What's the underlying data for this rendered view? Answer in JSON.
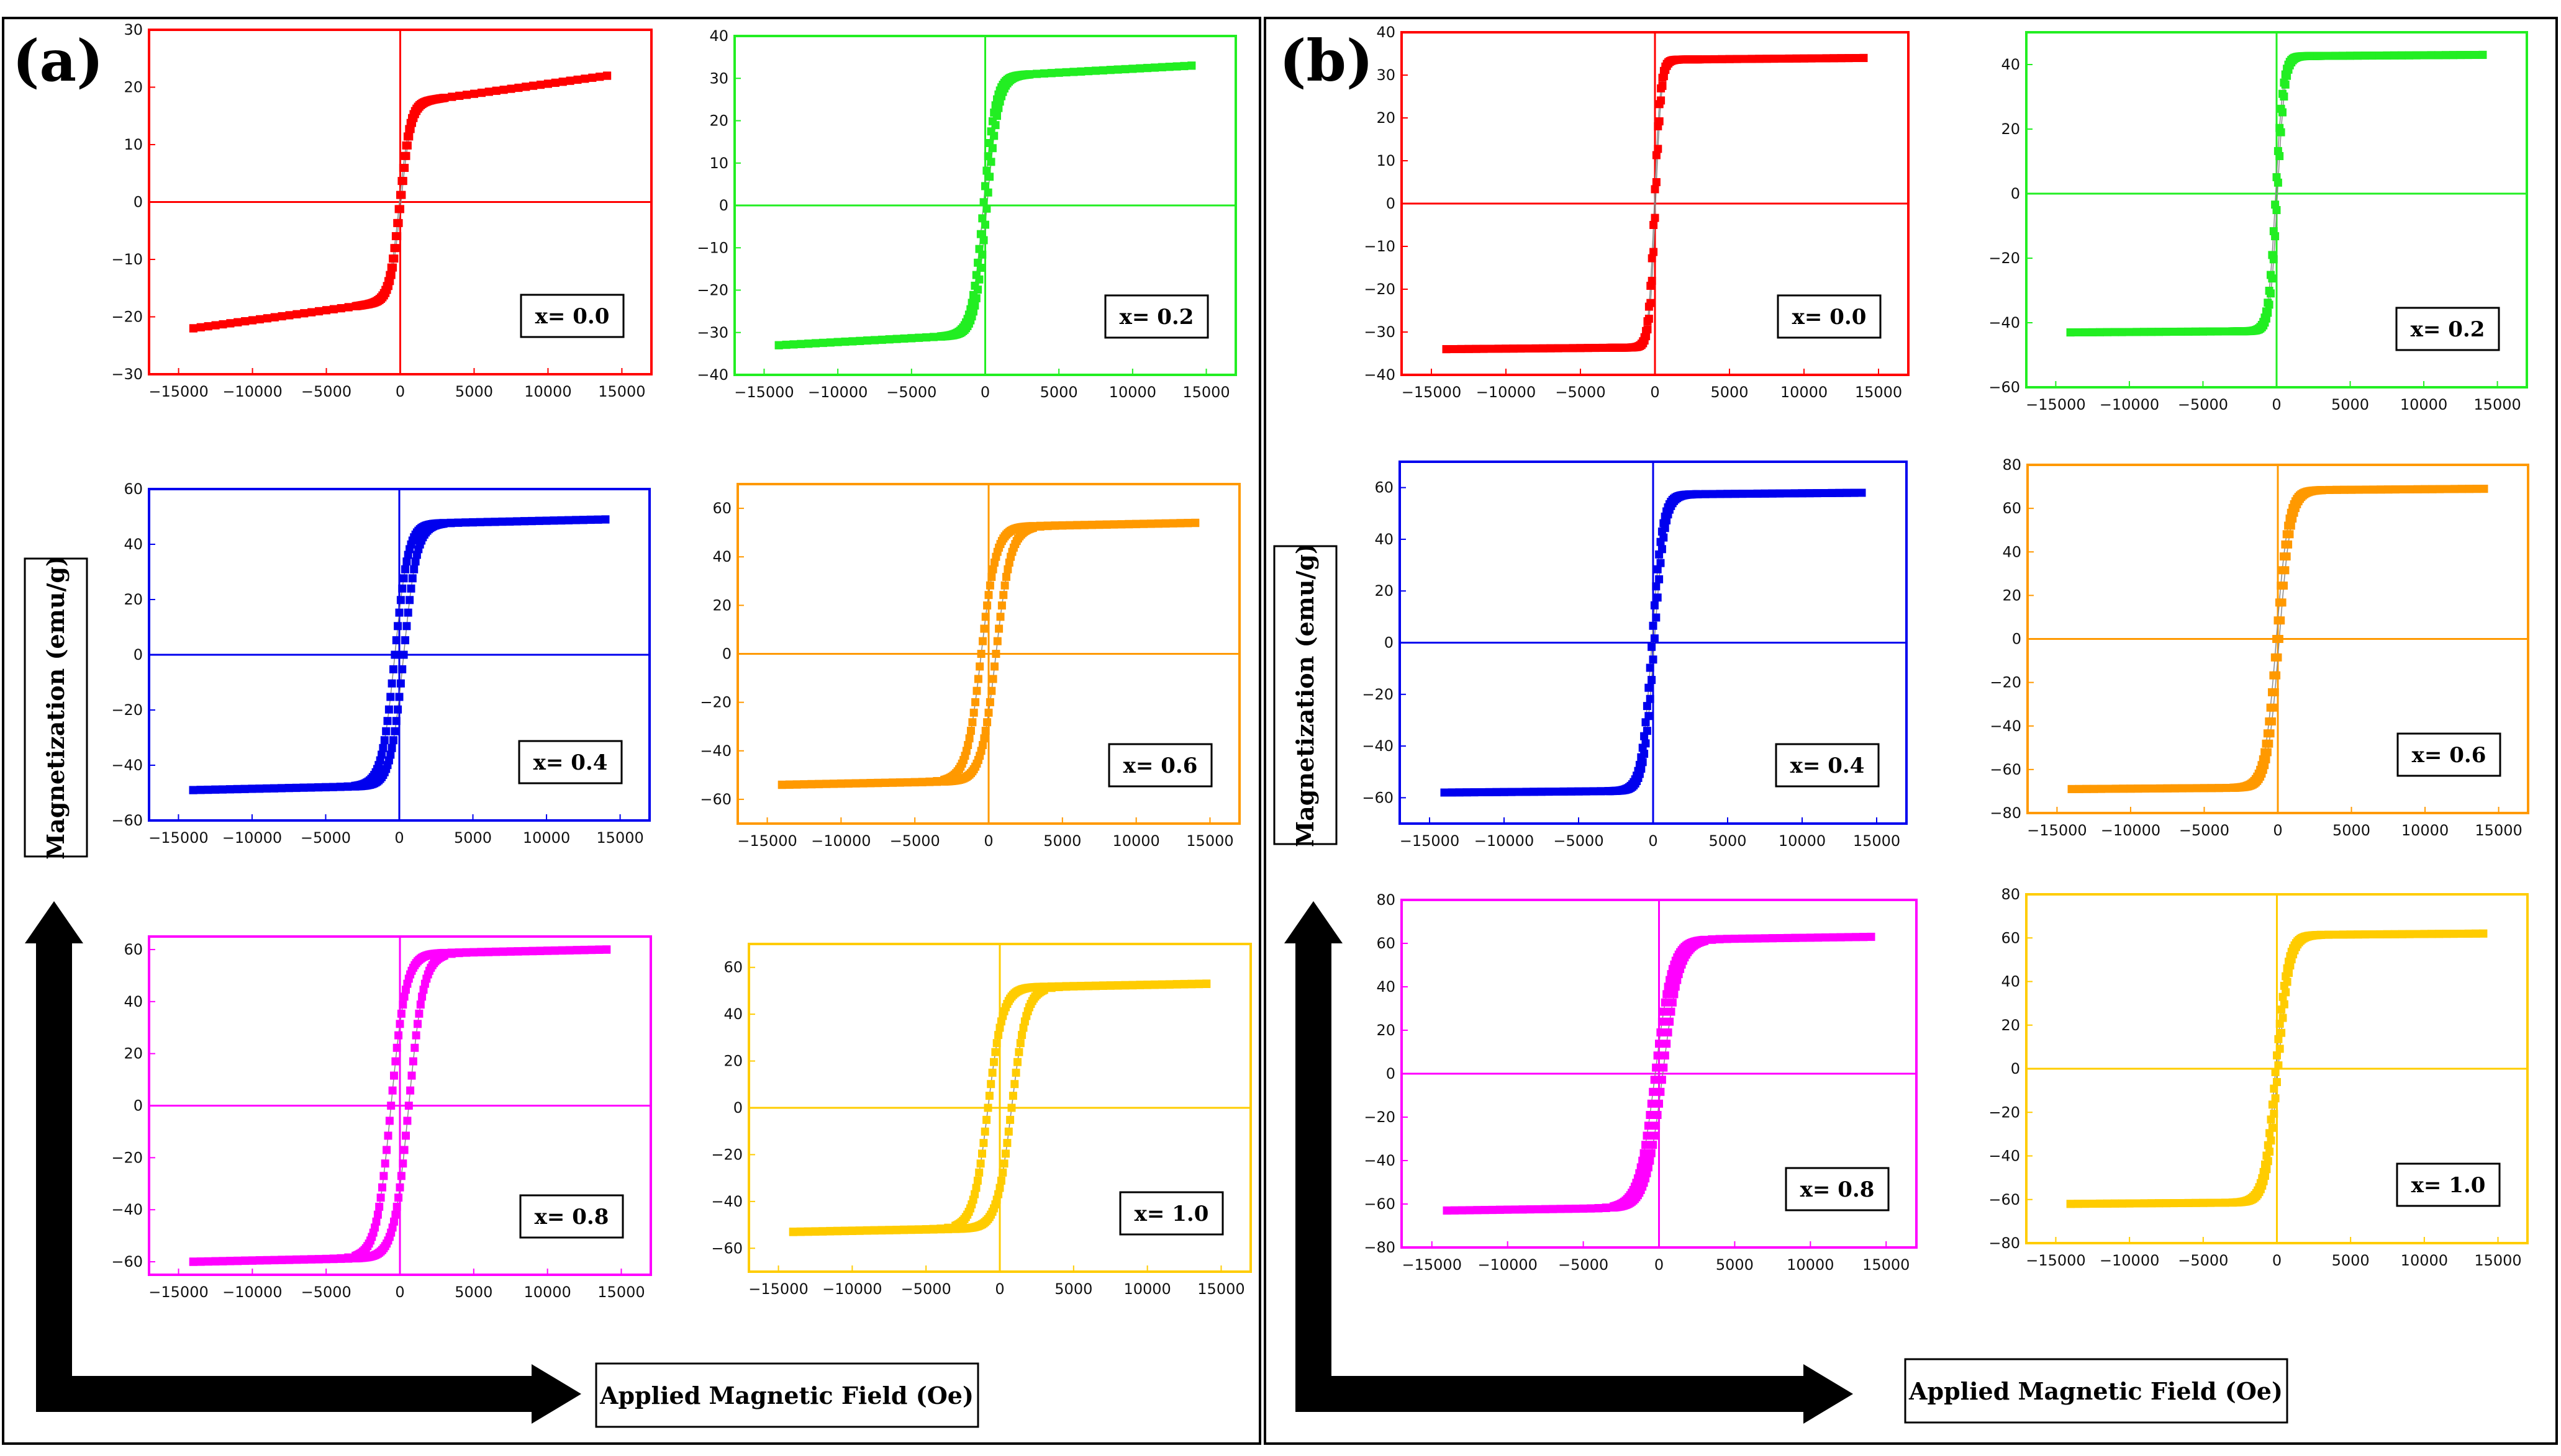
{
  "figure": {
    "panels": [
      {
        "letter": "(a)",
        "ylabel": "Magnetization (emu/g)",
        "xlabel": "Applied Magnetic Field (Oe)"
      },
      {
        "letter": "(b)",
        "ylabel": "Magnetization (emu/g)",
        "xlabel": "Applied Magnetic Field (Oe)"
      }
    ]
  },
  "chart_data": [
    {
      "type": "scatter",
      "panel": "(a)",
      "label": "x= 0.0",
      "color": "#ff0000",
      "xlim": [
        -17000,
        17000
      ],
      "ylim": [
        -30,
        30
      ],
      "xticks": [
        -15000,
        -10000,
        -5000,
        0,
        5000,
        10000,
        15000
      ],
      "yticks": [
        -30,
        -20,
        -10,
        0,
        10,
        20,
        30
      ],
      "curve": {
        "ms": 22,
        "hc": 50,
        "k": 700,
        "lin": 0.45
      }
    },
    {
      "type": "scatter",
      "panel": "(a)",
      "label": "x= 0.2",
      "color": "#22ee22",
      "xlim": [
        -17000,
        17000
      ],
      "ylim": [
        -40,
        40
      ],
      "xticks": [
        -15000,
        -10000,
        -5000,
        0,
        5000,
        10000,
        15000
      ],
      "yticks": [
        -40,
        -30,
        -20,
        -10,
        0,
        10,
        20,
        30,
        40
      ],
      "curve": {
        "ms": 33,
        "hc": 120,
        "k": 800,
        "lin": 0.2
      }
    },
    {
      "type": "scatter",
      "panel": "(a)",
      "label": "x= 0.4",
      "color": "#0000ee",
      "xlim": [
        -17000,
        17000
      ],
      "ylim": [
        -60,
        60
      ],
      "xticks": [
        -15000,
        -10000,
        -5000,
        0,
        5000,
        10000,
        15000
      ],
      "yticks": [
        -60,
        -40,
        -20,
        0,
        20,
        40,
        60
      ],
      "curve": {
        "ms": 49,
        "hc": 300,
        "k": 900,
        "lin": 0.12
      }
    },
    {
      "type": "scatter",
      "panel": "(a)",
      "label": "x= 0.6",
      "color": "#ff9900",
      "xlim": [
        -17000,
        17000
      ],
      "ylim": [
        -70,
        70
      ],
      "xticks": [
        -15000,
        -10000,
        -5000,
        0,
        5000,
        10000,
        15000
      ],
      "yticks": [
        -60,
        -40,
        -20,
        0,
        20,
        40,
        60
      ],
      "curve": {
        "ms": 54,
        "hc": 500,
        "k": 1000,
        "lin": 0.12
      }
    },
    {
      "type": "scatter",
      "panel": "(a)",
      "label": "x= 0.8",
      "color": "#ff00ff",
      "xlim": [
        -17000,
        17000
      ],
      "ylim": [
        -65,
        65
      ],
      "xticks": [
        -15000,
        -10000,
        -5000,
        0,
        5000,
        10000,
        15000
      ],
      "yticks": [
        -60,
        -40,
        -20,
        0,
        20,
        40,
        60
      ],
      "curve": {
        "ms": 60,
        "hc": 600,
        "k": 1000,
        "lin": 0.12
      }
    },
    {
      "type": "scatter",
      "panel": "(a)",
      "label": "x= 1.0",
      "color": "#ffcc00",
      "xlim": [
        -17000,
        17000
      ],
      "ylim": [
        -70,
        70
      ],
      "xticks": [
        -15000,
        -10000,
        -5000,
        0,
        5000,
        10000,
        15000
      ],
      "yticks": [
        -60,
        -40,
        -20,
        0,
        20,
        40,
        60
      ],
      "curve": {
        "ms": 53,
        "hc": 800,
        "k": 1000,
        "lin": 0.12
      }
    },
    {
      "type": "scatter",
      "panel": "(b)",
      "label": "x= 0.0",
      "color": "#ff0000",
      "xlim": [
        -17000,
        17000
      ],
      "ylim": [
        -40,
        40
      ],
      "xticks": [
        -15000,
        -10000,
        -5000,
        0,
        5000,
        10000,
        15000
      ],
      "yticks": [
        -40,
        -30,
        -20,
        -10,
        0,
        10,
        20,
        30,
        40
      ],
      "curve": {
        "ms": 34,
        "hc": 40,
        "k": 400,
        "lin": 0.03
      }
    },
    {
      "type": "scatter",
      "panel": "(b)",
      "label": "x= 0.2",
      "color": "#22ee22",
      "xlim": [
        -17000,
        17000
      ],
      "ylim": [
        -60,
        50
      ],
      "xticks": [
        -15000,
        -10000,
        -5000,
        0,
        5000,
        10000,
        15000
      ],
      "yticks": [
        -60,
        -40,
        -20,
        0,
        20,
        40
      ],
      "curve": {
        "ms": 43,
        "hc": 60,
        "k": 500,
        "lin": 0.03
      }
    },
    {
      "type": "scatter",
      "panel": "(b)",
      "label": "x= 0.4",
      "color": "#0000ee",
      "xlim": [
        -17000,
        17000
      ],
      "ylim": [
        -70,
        70
      ],
      "xticks": [
        -15000,
        -10000,
        -5000,
        0,
        5000,
        10000,
        15000
      ],
      "yticks": [
        -60,
        -40,
        -20,
        0,
        20,
        40,
        60
      ],
      "curve": {
        "ms": 58,
        "hc": 80,
        "k": 700,
        "lin": 0.05
      }
    },
    {
      "type": "scatter",
      "panel": "(b)",
      "label": "x= 0.6",
      "color": "#ff9900",
      "xlim": [
        -17000,
        17000
      ],
      "ylim": [
        -80,
        80
      ],
      "xticks": [
        -15000,
        -10000,
        -5000,
        0,
        5000,
        10000,
        15000
      ],
      "yticks": [
        -80,
        -60,
        -40,
        -20,
        0,
        20,
        40,
        60,
        80
      ],
      "curve": {
        "ms": 69,
        "hc": 100,
        "k": 800,
        "lin": 0.05
      }
    },
    {
      "type": "scatter",
      "panel": "(b)",
      "label": "x= 0.8",
      "color": "#ff00ff",
      "xlim": [
        -17000,
        17000
      ],
      "ylim": [
        -80,
        80
      ],
      "xticks": [
        -15000,
        -10000,
        -5000,
        0,
        5000,
        10000,
        15000
      ],
      "yticks": [
        -80,
        -60,
        -40,
        -20,
        0,
        20,
        40,
        60,
        80
      ],
      "curve": {
        "ms": 63,
        "hc": 250,
        "k": 1100,
        "lin": 0.1
      }
    },
    {
      "type": "scatter",
      "panel": "(b)",
      "label": "x= 1.0",
      "color": "#ffcc00",
      "xlim": [
        -17000,
        17000
      ],
      "ylim": [
        -80,
        80
      ],
      "xticks": [
        -15000,
        -10000,
        -5000,
        0,
        5000,
        10000,
        15000
      ],
      "yticks": [
        -80,
        -60,
        -40,
        -20,
        0,
        20,
        40,
        60,
        80
      ],
      "curve": {
        "ms": 62,
        "hc": 80,
        "k": 800,
        "lin": 0.05
      }
    }
  ]
}
